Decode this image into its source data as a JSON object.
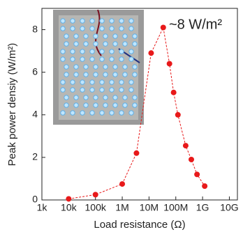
{
  "chart_data": {
    "type": "line",
    "annotation": "~8 W/m²",
    "x_label": "Load resistance (Ω)",
    "y_label": "Peak power densiy (W/m²)",
    "x": [
      10000,
      100000,
      1000000,
      3400000,
      12000000,
      34000000,
      58000000,
      83000000,
      120000000,
      234000000,
      380000000,
      620000000,
      1200000000
    ],
    "series": [
      {
        "color": "#e8191a",
        "values": [
          0.05,
          0.25,
          0.75,
          2.2,
          6.9,
          8.1,
          6.4,
          5.05,
          4.0,
          2.55,
          1.9,
          1.2,
          0.65
        ]
      }
    ],
    "log_x": true,
    "xlim": [
      1000,
      20000000000
    ],
    "ylim": [
      0,
      9
    ],
    "xticks": [
      {
        "value": 1000,
        "label": "1k"
      },
      {
        "value": 10000,
        "label": "10k"
      },
      {
        "value": 100000,
        "label": "100k"
      },
      {
        "value": 1000000,
        "label": "1M"
      },
      {
        "value": 10000000,
        "label": "10M"
      },
      {
        "value": 100000000,
        "label": "100M"
      },
      {
        "value": 1000000000,
        "label": "1G"
      },
      {
        "value": 10000000000,
        "label": "10G"
      }
    ],
    "yticks": [
      0,
      2,
      4,
      6,
      8
    ]
  }
}
